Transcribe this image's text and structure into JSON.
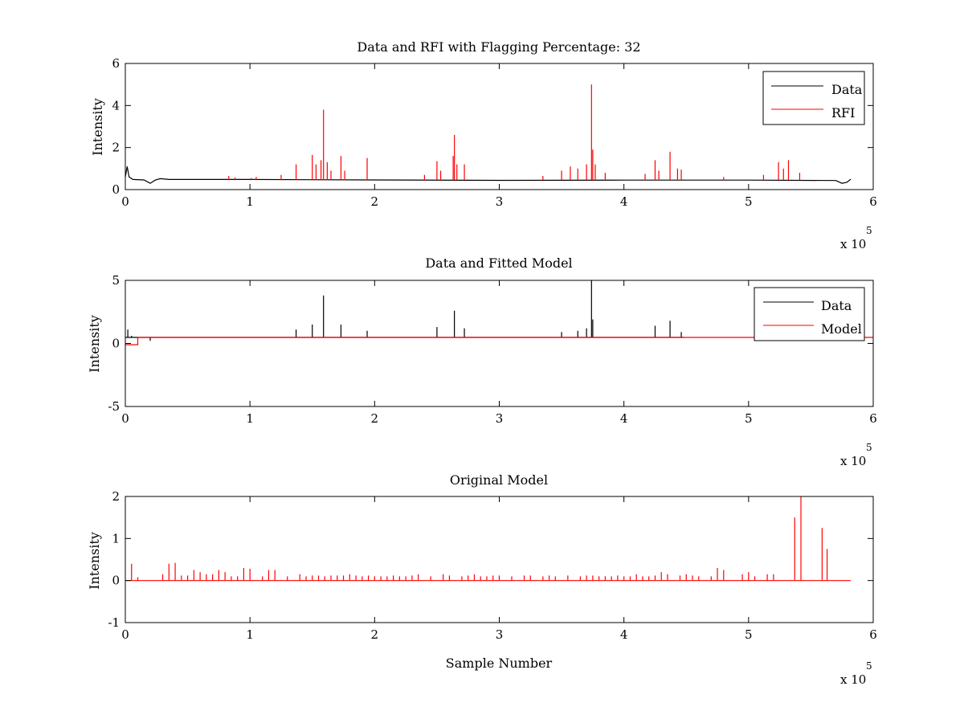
{
  "figure": {
    "background": "#ffffff"
  },
  "chart_data": [
    {
      "type": "line",
      "title": "Data and RFI with Flagging Percentage: 32",
      "xlabel": "",
      "ylabel": "Intensity",
      "xlim": [
        0,
        6
      ],
      "ylim": [
        0,
        6
      ],
      "xticks": [
        0,
        1,
        2,
        3,
        4,
        5,
        6
      ],
      "yticks": [
        0,
        2,
        4,
        6
      ],
      "x_multiplier": "x 10",
      "x_multiplier_exp": "5",
      "legend_position": "top-right",
      "series": [
        {
          "name": "Data",
          "color": "#000000",
          "kind": "line",
          "values": [
            [
              0.0,
              0.6
            ],
            [
              0.015,
              1.1
            ],
            [
              0.03,
              0.6
            ],
            [
              0.06,
              0.48
            ],
            [
              0.15,
              0.46
            ],
            [
              0.2,
              0.3
            ],
            [
              0.24,
              0.45
            ],
            [
              0.28,
              0.52
            ],
            [
              0.35,
              0.48
            ],
            [
              1.0,
              0.48
            ],
            [
              2.0,
              0.46
            ],
            [
              3.0,
              0.44
            ],
            [
              4.0,
              0.45
            ],
            [
              5.0,
              0.45
            ],
            [
              5.7,
              0.43
            ],
            [
              5.75,
              0.3
            ],
            [
              5.79,
              0.35
            ],
            [
              5.82,
              0.5
            ]
          ]
        },
        {
          "name": "RFI",
          "color": "#ff0000",
          "kind": "spikes",
          "baseline": 0.45,
          "values": [
            [
              0.83,
              0.65
            ],
            [
              0.88,
              0.58
            ],
            [
              1.01,
              0.55
            ],
            [
              1.05,
              0.6
            ],
            [
              1.25,
              0.7
            ],
            [
              1.37,
              1.2
            ],
            [
              1.5,
              1.65
            ],
            [
              1.53,
              1.2
            ],
            [
              1.57,
              1.4
            ],
            [
              1.59,
              3.8
            ],
            [
              1.62,
              1.3
            ],
            [
              1.65,
              0.9
            ],
            [
              1.73,
              1.6
            ],
            [
              1.76,
              0.9
            ],
            [
              1.94,
              1.5
            ],
            [
              2.4,
              0.7
            ],
            [
              2.5,
              1.35
            ],
            [
              2.53,
              0.9
            ],
            [
              2.63,
              1.6
            ],
            [
              2.64,
              2.6
            ],
            [
              2.66,
              1.2
            ],
            [
              2.72,
              1.2
            ],
            [
              3.35,
              0.65
            ],
            [
              3.5,
              0.9
            ],
            [
              3.57,
              1.1
            ],
            [
              3.63,
              1.0
            ],
            [
              3.7,
              1.2
            ],
            [
              3.74,
              5.0
            ],
            [
              3.75,
              1.9
            ],
            [
              3.77,
              1.2
            ],
            [
              3.85,
              0.8
            ],
            [
              4.17,
              0.75
            ],
            [
              4.25,
              1.4
            ],
            [
              4.28,
              0.9
            ],
            [
              4.37,
              1.8
            ],
            [
              4.43,
              1.0
            ],
            [
              4.46,
              0.95
            ],
            [
              4.8,
              0.6
            ],
            [
              5.12,
              0.7
            ],
            [
              5.24,
              1.3
            ],
            [
              5.28,
              1.0
            ],
            [
              5.32,
              1.4
            ],
            [
              5.41,
              0.8
            ]
          ]
        }
      ]
    },
    {
      "type": "line",
      "title": "Data and Fitted Model",
      "xlabel": "",
      "ylabel": "Intensity",
      "xlim": [
        0,
        6
      ],
      "ylim": [
        -5,
        5
      ],
      "xticks": [
        0,
        1,
        2,
        3,
        4,
        5,
        6
      ],
      "yticks": [
        -5,
        0,
        5
      ],
      "x_multiplier": "x 10",
      "x_multiplier_exp": "5",
      "legend_position": "top-right",
      "series": [
        {
          "name": "Data",
          "color": "#000000",
          "kind": "spikes",
          "baseline": 0.48,
          "values": [
            [
              0.02,
              1.1
            ],
            [
              0.05,
              0.6
            ],
            [
              0.2,
              0.2
            ],
            [
              1.37,
              1.1
            ],
            [
              1.5,
              1.5
            ],
            [
              1.59,
              3.8
            ],
            [
              1.73,
              1.5
            ],
            [
              1.94,
              1.0
            ],
            [
              2.5,
              1.3
            ],
            [
              2.64,
              2.6
            ],
            [
              2.72,
              1.2
            ],
            [
              3.5,
              0.9
            ],
            [
              3.63,
              1.0
            ],
            [
              3.7,
              1.2
            ],
            [
              3.74,
              5.0
            ],
            [
              3.75,
              1.9
            ],
            [
              4.25,
              1.4
            ],
            [
              4.37,
              1.8
            ],
            [
              4.46,
              0.9
            ]
          ]
        },
        {
          "name": "Model",
          "color": "#ff0000",
          "kind": "line",
          "values": [
            [
              0.0,
              -0.1
            ],
            [
              0.1,
              -0.1
            ],
            [
              0.1,
              0.48
            ],
            [
              6.0,
              0.48
            ]
          ]
        }
      ]
    },
    {
      "type": "line",
      "title": "Original Model",
      "xlabel": "Sample Number",
      "ylabel": "Intensity",
      "xlim": [
        0,
        6
      ],
      "ylim": [
        -1,
        2
      ],
      "xticks": [
        0,
        1,
        2,
        3,
        4,
        5,
        6
      ],
      "yticks": [
        -1,
        0,
        1,
        2
      ],
      "x_multiplier": "x 10",
      "x_multiplier_exp": "5",
      "series": [
        {
          "color": "#ff0000",
          "kind": "spikes",
          "baseline": 0.0,
          "range": [
            0.0,
            5.82
          ],
          "values": [
            [
              0.05,
              0.4
            ],
            [
              0.1,
              0.08
            ],
            [
              0.3,
              0.15
            ],
            [
              0.35,
              0.4
            ],
            [
              0.4,
              0.42
            ],
            [
              0.45,
              0.12
            ],
            [
              0.5,
              0.12
            ],
            [
              0.55,
              0.25
            ],
            [
              0.6,
              0.2
            ],
            [
              0.65,
              0.15
            ],
            [
              0.7,
              0.15
            ],
            [
              0.75,
              0.25
            ],
            [
              0.8,
              0.2
            ],
            [
              0.85,
              0.1
            ],
            [
              0.9,
              0.1
            ],
            [
              0.95,
              0.3
            ],
            [
              1.0,
              0.28
            ],
            [
              1.1,
              0.1
            ],
            [
              1.15,
              0.25
            ],
            [
              1.2,
              0.25
            ],
            [
              1.3,
              0.1
            ],
            [
              1.4,
              0.15
            ],
            [
              1.45,
              0.1
            ],
            [
              1.5,
              0.12
            ],
            [
              1.55,
              0.12
            ],
            [
              1.6,
              0.1
            ],
            [
              1.65,
              0.12
            ],
            [
              1.7,
              0.12
            ],
            [
              1.75,
              0.12
            ],
            [
              1.8,
              0.15
            ],
            [
              1.85,
              0.12
            ],
            [
              1.9,
              0.1
            ],
            [
              1.95,
              0.12
            ],
            [
              2.0,
              0.1
            ],
            [
              2.05,
              0.1
            ],
            [
              2.1,
              0.1
            ],
            [
              2.15,
              0.12
            ],
            [
              2.2,
              0.1
            ],
            [
              2.25,
              0.1
            ],
            [
              2.3,
              0.12
            ],
            [
              2.35,
              0.15
            ],
            [
              2.45,
              0.1
            ],
            [
              2.55,
              0.15
            ],
            [
              2.6,
              0.12
            ],
            [
              2.7,
              0.1
            ],
            [
              2.75,
              0.12
            ],
            [
              2.8,
              0.15
            ],
            [
              2.85,
              0.1
            ],
            [
              2.9,
              0.1
            ],
            [
              2.95,
              0.12
            ],
            [
              3.0,
              0.12
            ],
            [
              3.1,
              0.1
            ],
            [
              3.2,
              0.12
            ],
            [
              3.25,
              0.12
            ],
            [
              3.35,
              0.1
            ],
            [
              3.4,
              0.12
            ],
            [
              3.45,
              0.1
            ],
            [
              3.55,
              0.12
            ],
            [
              3.65,
              0.1
            ],
            [
              3.7,
              0.12
            ],
            [
              3.75,
              0.12
            ],
            [
              3.8,
              0.1
            ],
            [
              3.85,
              0.1
            ],
            [
              3.9,
              0.1
            ],
            [
              3.95,
              0.12
            ],
            [
              4.0,
              0.1
            ],
            [
              4.05,
              0.1
            ],
            [
              4.1,
              0.15
            ],
            [
              4.15,
              0.1
            ],
            [
              4.2,
              0.1
            ],
            [
              4.25,
              0.12
            ],
            [
              4.3,
              0.2
            ],
            [
              4.35,
              0.15
            ],
            [
              4.45,
              0.12
            ],
            [
              4.5,
              0.15
            ],
            [
              4.55,
              0.12
            ],
            [
              4.6,
              0.1
            ],
            [
              4.7,
              0.1
            ],
            [
              4.75,
              0.3
            ],
            [
              4.8,
              0.25
            ],
            [
              4.95,
              0.15
            ],
            [
              5.0,
              0.2
            ],
            [
              5.05,
              0.1
            ],
            [
              5.15,
              0.15
            ],
            [
              5.2,
              0.15
            ],
            [
              5.37,
              1.5
            ],
            [
              5.42,
              2.0
            ],
            [
              5.59,
              1.25
            ],
            [
              5.63,
              0.75
            ]
          ]
        }
      ]
    }
  ]
}
